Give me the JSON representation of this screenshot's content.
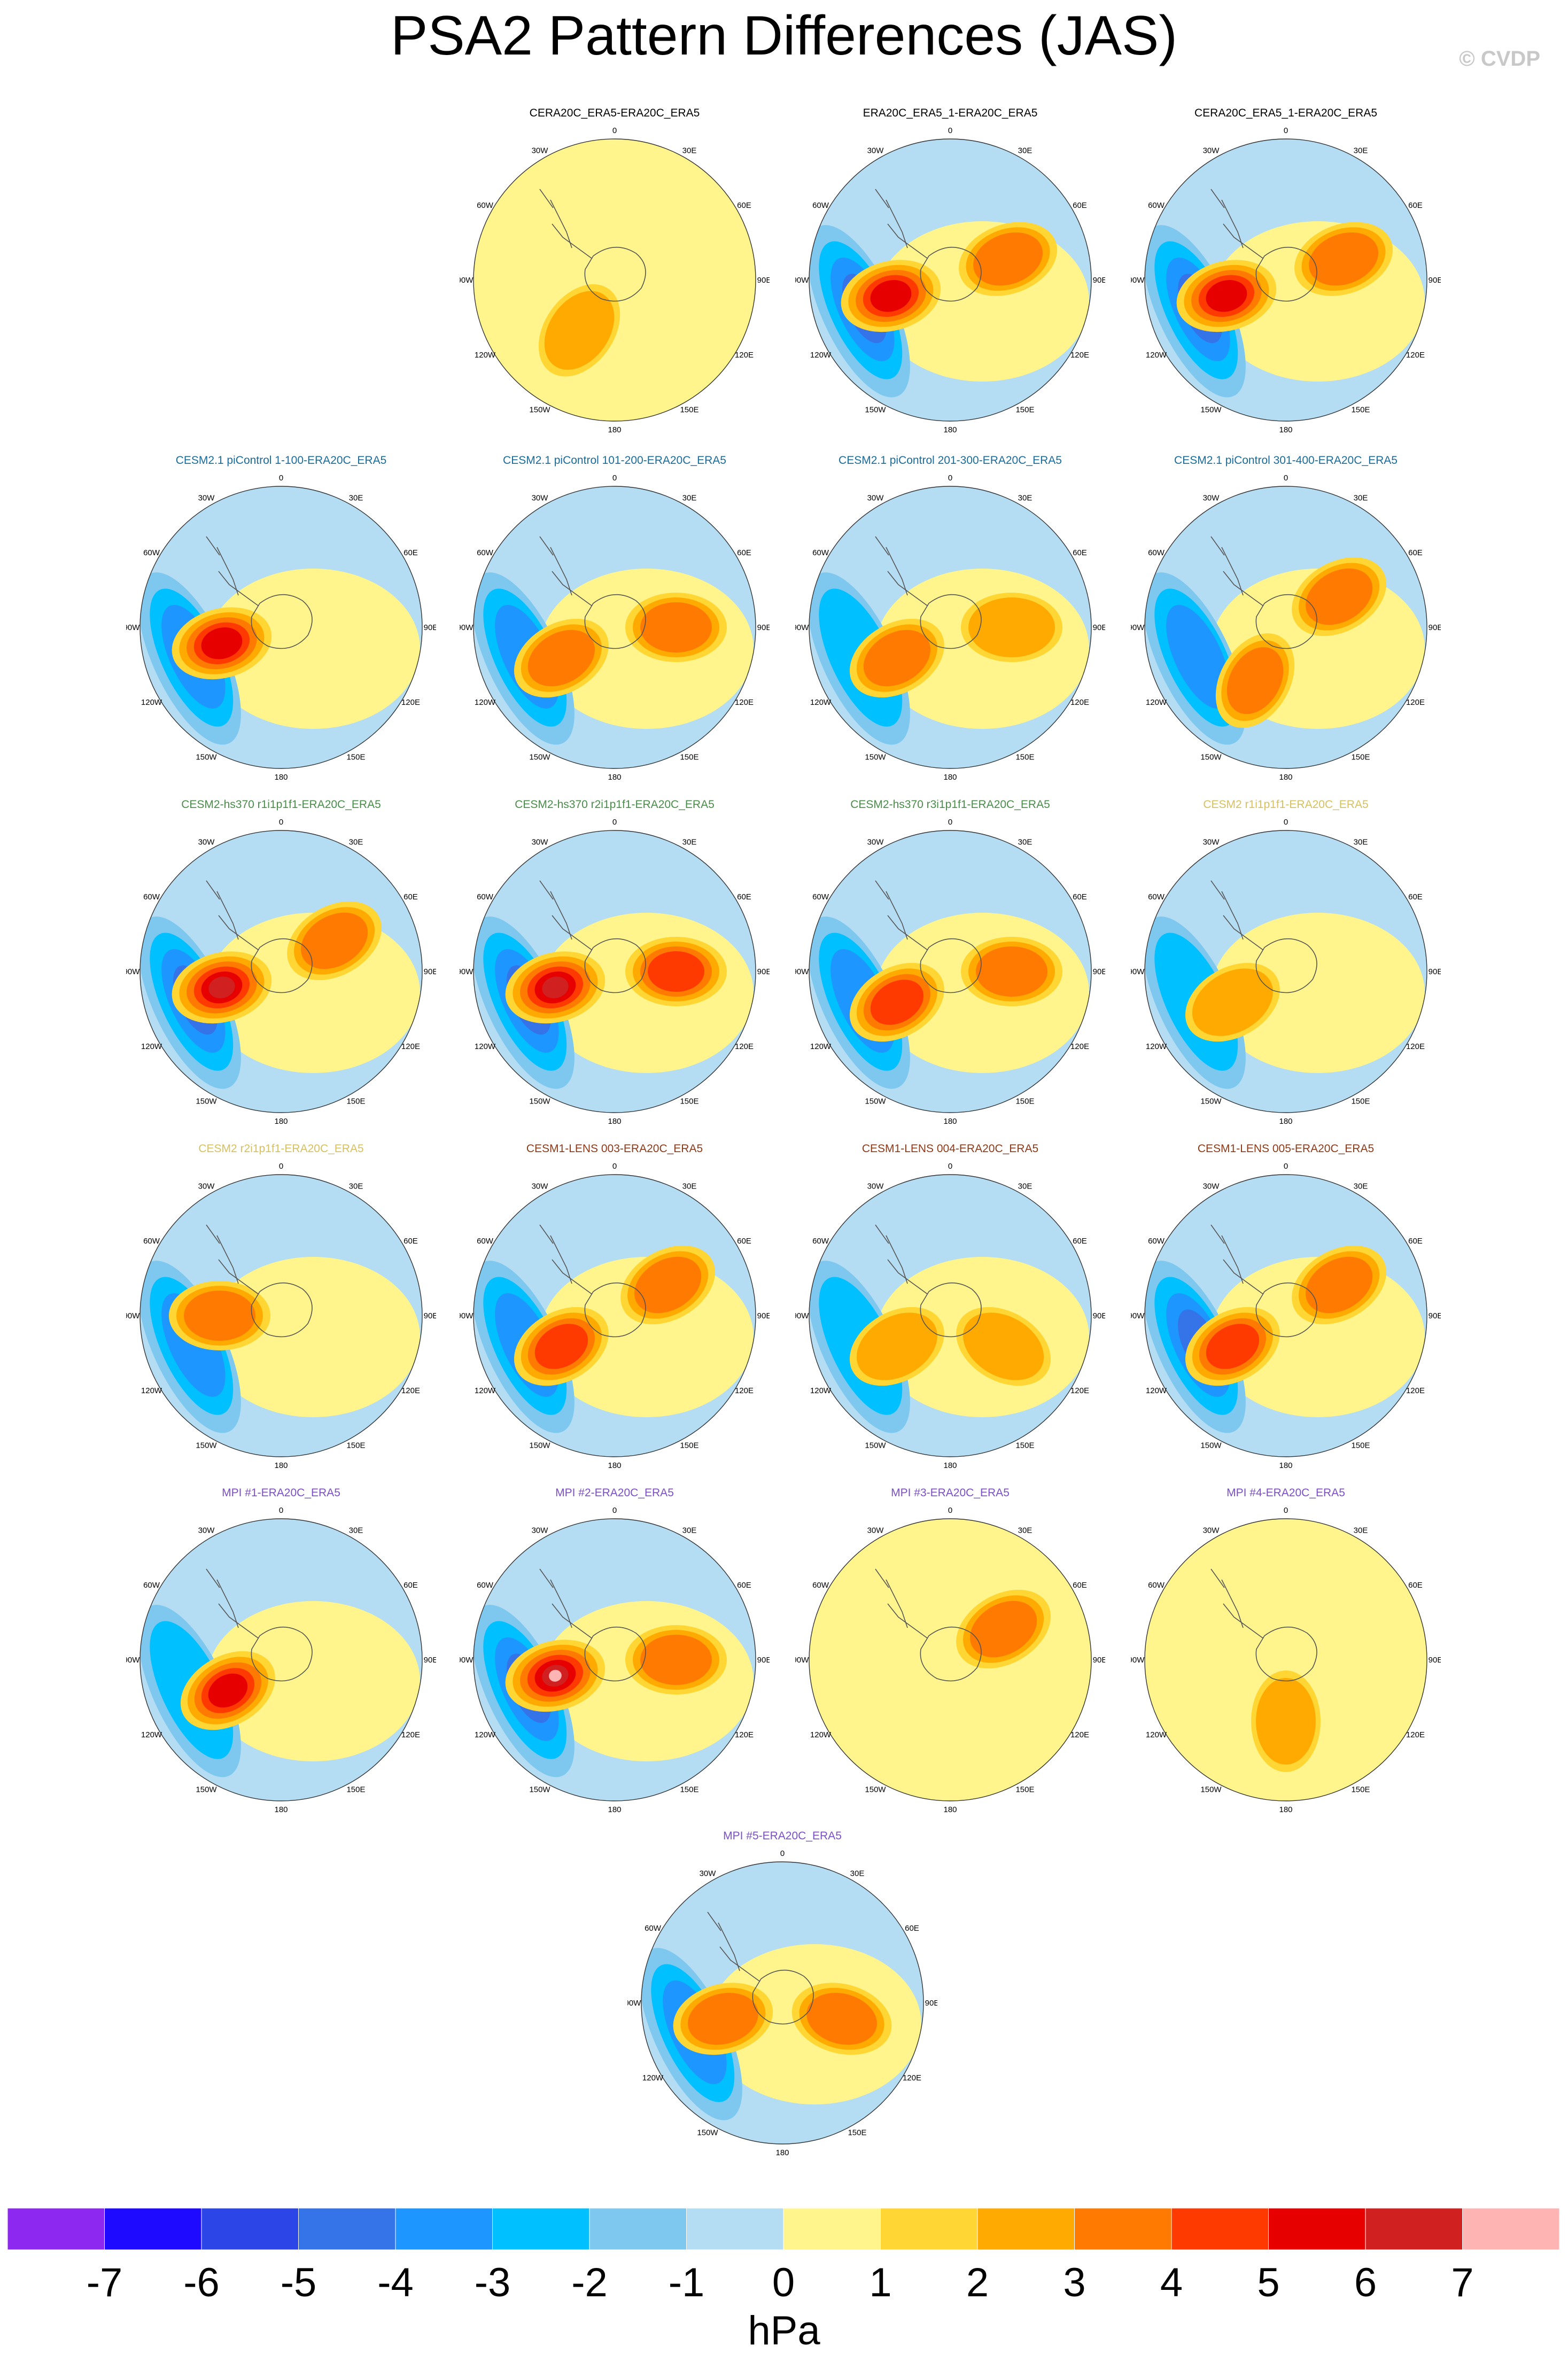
{
  "figure": {
    "title": "PSA2 Pattern Differences (JAS)",
    "copyright": "© CVDP",
    "units": "hPa"
  },
  "map_labels": [
    "0",
    "30E",
    "60E",
    "90E",
    "120E",
    "150E",
    "180",
    "150W",
    "120W",
    "90W",
    "60W",
    "30W"
  ],
  "colorbar": {
    "colors": [
      "#8c28ef",
      "#1e0aff",
      "#2b45e6",
      "#3473e8",
      "#1e96ff",
      "#00c0ff",
      "#7ec8f0",
      "#b4dcf2",
      "#fff58c",
      "#ffd633",
      "#ffaa00",
      "#ff7a00",
      "#ff3a00",
      "#e60000",
      "#d02020",
      "#ffb4b4"
    ],
    "tick_labels": [
      "-7",
      "-6",
      "-5",
      "-4",
      "-3",
      "-2",
      "-1",
      "0",
      "1",
      "2",
      "3",
      "4",
      "5",
      "6",
      "7"
    ]
  },
  "chart_data": {
    "type": "heatmap",
    "description_levels": "Contour interval 1 hPa, range -7 to 7 hPa",
    "panels": [
      {
        "title": "CERA20C_ERA5-ERA20C_ERA5",
        "title_color": "#000000",
        "min": -1,
        "max": 2,
        "features": [
          {
            "sign": "+",
            "max_hPa": 2,
            "sector": "90W-180"
          }
        ]
      },
      {
        "title": "ERA20C_ERA5_1-ERA20C_ERA5",
        "title_color": "#000000",
        "min": -4,
        "max": 5,
        "features": [
          {
            "sign": "+",
            "max_hPa": 5,
            "sector": "90W-120W"
          },
          {
            "sign": "-",
            "max_hPa": -4,
            "sector": "120W-150W"
          },
          {
            "sign": "+",
            "max_hPa": 3,
            "sector": "60E-90E"
          }
        ]
      },
      {
        "title": "CERA20C_ERA5_1-ERA20C_ERA5",
        "title_color": "#000000",
        "min": -4,
        "max": 5,
        "features": [
          {
            "sign": "+",
            "max_hPa": 5,
            "sector": "90W-120W"
          },
          {
            "sign": "-",
            "max_hPa": -4,
            "sector": "120W-150W"
          },
          {
            "sign": "+",
            "max_hPa": 3,
            "sector": "60E-90E"
          }
        ]
      },
      {
        "title": "CESM2.1 piControl 1-100-ERA20C_ERA5",
        "title_color": "#1a6b9a",
        "min": -3,
        "max": 5,
        "features": [
          {
            "sign": "+",
            "max_hPa": 5,
            "sector": "90W-120W"
          },
          {
            "sign": "-",
            "max_hPa": -3,
            "sector": "Antarctic Peninsula"
          }
        ]
      },
      {
        "title": "CESM2.1 piControl 101-200-ERA20C_ERA5",
        "title_color": "#1a6b9a",
        "min": -3,
        "max": 3,
        "features": [
          {
            "sign": "+",
            "max_hPa": 3,
            "sector": "120W"
          },
          {
            "sign": "+",
            "max_hPa": 3,
            "sector": "90E"
          }
        ]
      },
      {
        "title": "CESM2.1 piControl 201-300-ERA20C_ERA5",
        "title_color": "#1a6b9a",
        "min": -2,
        "max": 3,
        "features": [
          {
            "sign": "+",
            "max_hPa": 3,
            "sector": "120W"
          },
          {
            "sign": "+",
            "max_hPa": 2,
            "sector": "90E"
          }
        ]
      },
      {
        "title": "CESM2.1 piControl 301-400-ERA20C_ERA5",
        "title_color": "#1a6b9a",
        "min": -3,
        "max": 3,
        "features": [
          {
            "sign": "+",
            "max_hPa": 3,
            "sector": "150W"
          },
          {
            "sign": "+",
            "max_hPa": 3,
            "sector": "60E"
          }
        ]
      },
      {
        "title": "CESM2-hs370 r1i1p1f1-ERA20C_ERA5",
        "title_color": "#4a8c4a",
        "min": -4,
        "max": 6,
        "features": [
          {
            "sign": "+",
            "max_hPa": 6,
            "sector": "90W-120W"
          },
          {
            "sign": "-",
            "max_hPa": -4,
            "sector": "120W"
          },
          {
            "sign": "+",
            "max_hPa": 3,
            "sector": "60E"
          }
        ]
      },
      {
        "title": "CESM2-hs370 r2i1p1f1-ERA20C_ERA5",
        "title_color": "#4a8c4a",
        "min": -4,
        "max": 6,
        "features": [
          {
            "sign": "+",
            "max_hPa": 6,
            "sector": "90W-120W"
          },
          {
            "sign": "-",
            "max_hPa": -4,
            "sector": "120W"
          },
          {
            "sign": "+",
            "max_hPa": 4,
            "sector": "90E"
          }
        ]
      },
      {
        "title": "CESM2-hs370 r3i1p1f1-ERA20C_ERA5",
        "title_color": "#4a8c4a",
        "min": -3,
        "max": 4,
        "features": [
          {
            "sign": "+",
            "max_hPa": 4,
            "sector": "120W"
          },
          {
            "sign": "+",
            "max_hPa": 3,
            "sector": "90E"
          }
        ]
      },
      {
        "title": "CESM2 r1i1p1f1-ERA20C_ERA5",
        "title_color": "#d6c060",
        "min": -2,
        "max": 2,
        "features": [
          {
            "sign": "+",
            "max_hPa": 2,
            "sector": "120W"
          }
        ]
      },
      {
        "title": "CESM2 r2i1p1f1-ERA20C_ERA5",
        "title_color": "#d6c060",
        "min": -3,
        "max": 3,
        "features": [
          {
            "sign": "+",
            "max_hPa": 3,
            "sector": "90W"
          },
          {
            "sign": "-",
            "max_hPa": -3,
            "sector": "120W"
          }
        ]
      },
      {
        "title": "CESM1-LENS 003-ERA20C_ERA5",
        "title_color": "#8b3a1a",
        "min": -3,
        "max": 4,
        "features": [
          {
            "sign": "+",
            "max_hPa": 4,
            "sector": "120W"
          },
          {
            "sign": "+",
            "max_hPa": 3,
            "sector": "60E"
          }
        ]
      },
      {
        "title": "CESM1-LENS 004-ERA20C_ERA5",
        "title_color": "#8b3a1a",
        "min": -2,
        "max": 2,
        "features": [
          {
            "sign": "+",
            "max_hPa": 2,
            "sector": "120W"
          },
          {
            "sign": "+",
            "max_hPa": 2,
            "sector": "120E"
          }
        ]
      },
      {
        "title": "CESM1-LENS 005-ERA20C_ERA5",
        "title_color": "#8b3a1a",
        "min": -4,
        "max": 4,
        "features": [
          {
            "sign": "+",
            "max_hPa": 4,
            "sector": "120W"
          },
          {
            "sign": "+",
            "max_hPa": 3,
            "sector": "60E"
          }
        ]
      },
      {
        "title": "MPI #1-ERA20C_ERA5",
        "title_color": "#7a4fc8",
        "min": -2,
        "max": 5,
        "features": [
          {
            "sign": "+",
            "max_hPa": 5,
            "sector": "120W"
          }
        ]
      },
      {
        "title": "MPI #2-ERA20C_ERA5",
        "title_color": "#7a4fc8",
        "min": -4,
        "max": 7,
        "features": [
          {
            "sign": "+",
            "max_hPa": 7,
            "sector": "90W-120W"
          },
          {
            "sign": "-",
            "max_hPa": -4,
            "sector": "120W"
          },
          {
            "sign": "+",
            "max_hPa": 3,
            "sector": "90E"
          }
        ]
      },
      {
        "title": "MPI #3-ERA20C_ERA5",
        "title_color": "#7a4fc8",
        "min": -1,
        "max": 3,
        "features": [
          {
            "sign": "+",
            "max_hPa": 3,
            "sector": "60E"
          }
        ]
      },
      {
        "title": "MPI #4-ERA20C_ERA5",
        "title_color": "#7a4fc8",
        "min": -1,
        "max": 2,
        "features": [
          {
            "sign": "+",
            "max_hPa": 2,
            "sector": "180"
          }
        ]
      },
      {
        "title": "MPI #5-ERA20C_ERA5",
        "title_color": "#7a4fc8",
        "min": -3,
        "max": 3,
        "features": [
          {
            "sign": "+",
            "max_hPa": 3,
            "sector": "90W-120W"
          },
          {
            "sign": "+",
            "max_hPa": 3,
            "sector": "90E-120E"
          }
        ]
      }
    ]
  }
}
